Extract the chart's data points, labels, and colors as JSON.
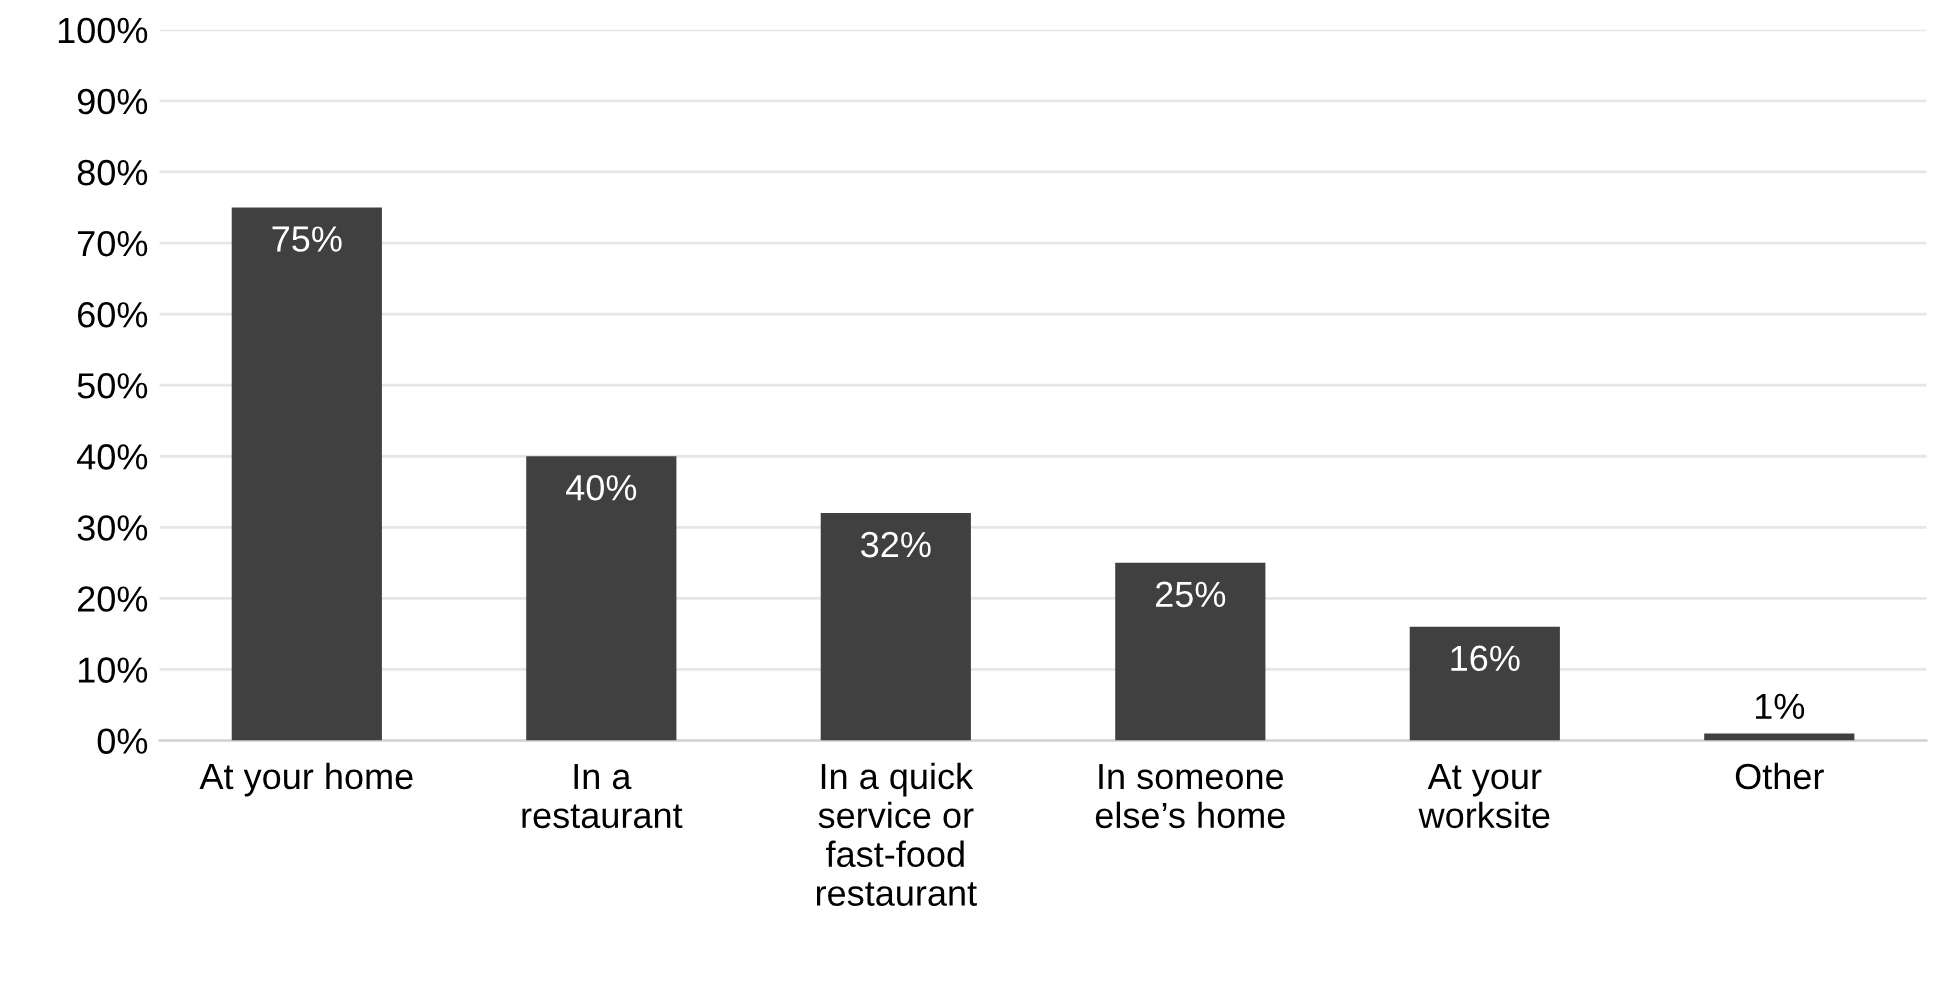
{
  "chart_data": {
    "type": "bar",
    "categories": [
      "At your home",
      "In a\nrestaurant",
      "In a quick\nservice or\nfast-food\nrestaurant",
      "In someone\nelse’s home",
      "At your\nworksite",
      "Other"
    ],
    "values": [
      75,
      40,
      32,
      25,
      16,
      1
    ],
    "value_labels": [
      "75%",
      "40%",
      "32%",
      "25%",
      "16%",
      "1%"
    ],
    "color": "#404040",
    "ylim": [
      0,
      100
    ],
    "yticks": [
      {
        "value": 0,
        "label": "0%"
      },
      {
        "value": 10,
        "label": "10%"
      },
      {
        "value": 20,
        "label": "20%"
      },
      {
        "value": 30,
        "label": "30%"
      },
      {
        "value": 40,
        "label": "40%"
      },
      {
        "value": 50,
        "label": "50%"
      },
      {
        "value": 60,
        "label": "60%"
      },
      {
        "value": 70,
        "label": "70%"
      },
      {
        "value": 80,
        "label": "80%"
      },
      {
        "value": 90,
        "label": "90%"
      },
      {
        "value": 100,
        "label": "100%"
      }
    ],
    "grid": "y"
  }
}
